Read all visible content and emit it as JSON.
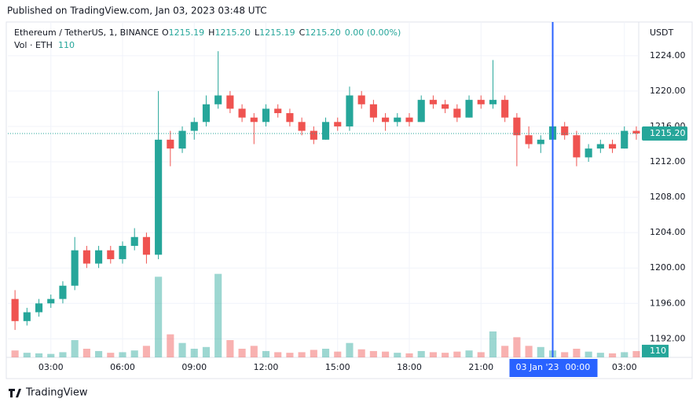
{
  "header": {
    "published": "Published on TradingView.com, Jan 03, 2023 03:48 UTC",
    "brand": "TradingView"
  },
  "chart_data": {
    "type": "candlestick",
    "symbol": "Ethereum / TetherUS, 1, BINANCE",
    "ohlc_legend": [
      [
        "O",
        "1215.19"
      ],
      [
        "H",
        "1215.20"
      ],
      [
        "L",
        "1215.19"
      ],
      [
        "C",
        "1215.20"
      ],
      [
        "",
        "0.00 (0.00%)"
      ]
    ],
    "volume_legend": [
      "Vol · ETH",
      "110"
    ],
    "currency": "USDT",
    "up_color": "#26a69a",
    "down_color": "#ef5350",
    "x": [
      1.5,
      2,
      2.5,
      3,
      3.5,
      4,
      4.5,
      5,
      5.5,
      6,
      6.5,
      7,
      7.5,
      8,
      8.5,
      9,
      9.5,
      10,
      10.5,
      11,
      11.5,
      12,
      12.5,
      13,
      13.5,
      14,
      14.5,
      15,
      15.5,
      16,
      16.5,
      17,
      17.5,
      18,
      18.5,
      19,
      19.5,
      20,
      20.5,
      21,
      21.5,
      22,
      22.5,
      23,
      23.5,
      24,
      24.5,
      25,
      25.5,
      26,
      26.5,
      27,
      27.5
    ],
    "open": [
      1196.5,
      1194,
      1195,
      1196,
      1196.5,
      1198,
      1202,
      1200.5,
      1202,
      1201,
      1202.5,
      1203.5,
      1201.5,
      1214.5,
      1213.5,
      1215.5,
      1216.5,
      1218.5,
      1219.5,
      1218,
      1217,
      1216.5,
      1218,
      1217.5,
      1216.5,
      1215.5,
      1214.5,
      1216.5,
      1216,
      1219.5,
      1218.5,
      1217,
      1216.5,
      1217,
      1216.5,
      1219,
      1218.5,
      1218,
      1217,
      1219,
      1218.5,
      1219,
      1217,
      1215,
      1214,
      1214.5,
      1216,
      1215,
      1212.5,
      1213.5,
      1214,
      1213.5,
      1215.5
    ],
    "high": [
      1197.5,
      1195.5,
      1196.5,
      1197,
      1198.5,
      1203.5,
      1202.5,
      1202.5,
      1202.5,
      1203,
      1204.5,
      1204,
      1220,
      1215.5,
      1216,
      1217,
      1219.5,
      1224.5,
      1220,
      1218.5,
      1217.5,
      1218.5,
      1218.5,
      1218,
      1217,
      1216,
      1217,
      1217,
      1220.5,
      1220,
      1219,
      1217.5,
      1217.5,
      1217.5,
      1219.5,
      1219.5,
      1219,
      1218.5,
      1219.5,
      1219.5,
      1223.5,
      1219.5,
      1217.5,
      1216,
      1215,
      1216.5,
      1216.5,
      1215.5,
      1214,
      1214.5,
      1214.5,
      1216,
      1216
    ],
    "low": [
      1193,
      1193.5,
      1194.5,
      1195.5,
      1196,
      1197.5,
      1200,
      1200,
      1200.5,
      1200.5,
      1202,
      1200.5,
      1201,
      1211.5,
      1213,
      1214.5,
      1216,
      1218,
      1217.5,
      1216.5,
      1214,
      1216,
      1217,
      1216,
      1215,
      1214,
      1214.5,
      1215.5,
      1215.5,
      1218,
      1216.5,
      1215.5,
      1216,
      1216,
      1216.5,
      1218,
      1217.5,
      1216.5,
      1217,
      1218,
      1218,
      1216.5,
      1211.5,
      1213.5,
      1213,
      1214,
      1214.5,
      1211.5,
      1212,
      1213,
      1213,
      1213.5,
      1214.5
    ],
    "close": [
      1194,
      1195,
      1196,
      1196.5,
      1198,
      1202,
      1200.5,
      1202,
      1201,
      1202.5,
      1203.5,
      1201.5,
      1214.5,
      1213.5,
      1215.5,
      1216.5,
      1218.5,
      1219.5,
      1218,
      1217,
      1216.5,
      1218,
      1217.5,
      1216.5,
      1215.5,
      1214.5,
      1216.5,
      1216,
      1219.5,
      1218.5,
      1217,
      1216.5,
      1217,
      1216.5,
      1219,
      1218.5,
      1218,
      1217,
      1219,
      1218.5,
      1219,
      1217,
      1215,
      1214,
      1214.5,
      1216,
      1215,
      1212.5,
      1213.5,
      1214,
      1213.5,
      1215.5,
      1215.2
    ],
    "volume": [
      120,
      80,
      70,
      60,
      90,
      300,
      150,
      110,
      80,
      90,
      120,
      200,
      1400,
      400,
      250,
      150,
      180,
      1450,
      300,
      150,
      200,
      110,
      90,
      80,
      90,
      130,
      150,
      100,
      250,
      140,
      110,
      100,
      80,
      70,
      110,
      90,
      80,
      100,
      120,
      90,
      450,
      200,
      350,
      200,
      180,
      120,
      90,
      150,
      100,
      80,
      70,
      90,
      110
    ],
    "xlim": [
      1.2,
      27.6
    ],
    "xticks": [
      {
        "value": 3,
        "label": "03:00"
      },
      {
        "value": 6,
        "label": "06:00"
      },
      {
        "value": 9,
        "label": "09:00"
      },
      {
        "value": 12,
        "label": "12:00"
      },
      {
        "value": 15,
        "label": "15:00"
      },
      {
        "value": 18,
        "label": "18:00"
      },
      {
        "value": 21,
        "label": "21:00"
      },
      {
        "value": 27,
        "label": "03:00"
      }
    ],
    "ylim": [
      1189.9,
      1227.8
    ],
    "yticks": [
      {
        "value": 1192,
        "label": "1192.00"
      },
      {
        "value": 1196,
        "label": "1196.00"
      },
      {
        "value": 1200,
        "label": "1200.00"
      },
      {
        "value": 1204,
        "label": "1204.00"
      },
      {
        "value": 1208,
        "label": "1208.00"
      },
      {
        "value": 1212,
        "label": "1212.00"
      },
      {
        "value": 1216,
        "label": "1216.00"
      },
      {
        "value": 1220,
        "label": "1220.00"
      },
      {
        "value": 1224,
        "label": "1224.00"
      }
    ],
    "vlim": [
      0,
      1500
    ],
    "last_price": {
      "value": 1215.2,
      "label": "1215.20"
    },
    "last_volume": 110,
    "crosshair": {
      "x": 24,
      "date": "03 Jan '23",
      "time": "00:00",
      "color": "#2962ff"
    },
    "grid": true
  }
}
